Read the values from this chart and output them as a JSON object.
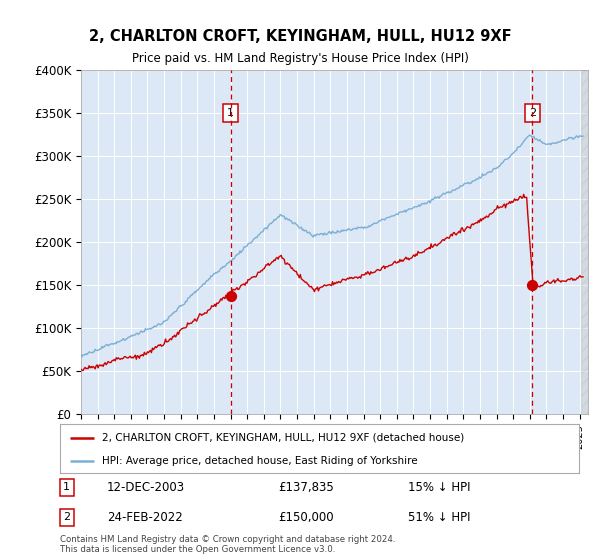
{
  "title": "2, CHARLTON CROFT, KEYINGHAM, HULL, HU12 9XF",
  "subtitle": "Price paid vs. HM Land Registry's House Price Index (HPI)",
  "ylim": [
    0,
    400000
  ],
  "yticks": [
    0,
    50000,
    100000,
    150000,
    200000,
    250000,
    300000,
    350000,
    400000
  ],
  "ytick_labels": [
    "£0",
    "£50K",
    "£100K",
    "£150K",
    "£200K",
    "£250K",
    "£300K",
    "£350K",
    "£400K"
  ],
  "xlim_start": 1995.0,
  "xlim_end": 2025.5,
  "plot_bg_color": "#dce8f5",
  "legend_label_red": "2, CHARLTON CROFT, KEYINGHAM, HULL, HU12 9XF (detached house)",
  "legend_label_blue": "HPI: Average price, detached house, East Riding of Yorkshire",
  "label1_date": "12-DEC-2003",
  "label1_price": "£137,835",
  "label1_pct": "15% ↓ HPI",
  "label2_date": "24-FEB-2022",
  "label2_price": "£150,000",
  "label2_pct": "51% ↓ HPI",
  "footnote": "Contains HM Land Registry data © Crown copyright and database right 2024.\nThis data is licensed under the Open Government Licence v3.0.",
  "line1_x": 2004.0,
  "line2_x": 2022.15,
  "sale1_y": 137835,
  "sale2_y": 150000,
  "red_color": "#cc0000",
  "blue_color": "#7bafd4"
}
